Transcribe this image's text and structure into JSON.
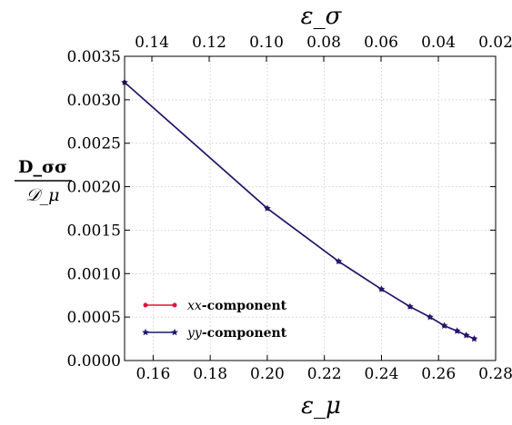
{
  "chart_data": {
    "type": "line",
    "xlabel": "ε_μ",
    "x2label": "ε_σ",
    "ylabel": {
      "numerator": "D_σσ",
      "denominator": "𝒟_μ"
    },
    "xlim": [
      0.15,
      0.28
    ],
    "ylim": [
      0.0,
      0.0035
    ],
    "x_ticks": [
      "0.16",
      "0.18",
      "0.20",
      "0.22",
      "0.24",
      "0.26",
      "0.28"
    ],
    "y_ticks": [
      "0.0000",
      "0.0005",
      "0.0010",
      "0.0015",
      "0.0020",
      "0.0025",
      "0.0030",
      "0.0035"
    ],
    "x2_ticks": [
      "0.14",
      "0.12",
      "0.10",
      "0.08",
      "0.06",
      "0.04",
      "0.02"
    ],
    "grid": true,
    "legend_position": "lower-left",
    "series": [
      {
        "name_math": "xx",
        "name_text": "-component",
        "color": "#dc143c",
        "marker": "circle",
        "x": [
          0.15,
          0.2,
          0.225,
          0.24,
          0.25,
          0.257,
          0.262,
          0.2665,
          0.2697,
          0.2725
        ],
        "y": [
          0.0032,
          0.00175,
          0.00114,
          0.00082,
          0.00062,
          0.0005,
          0.0004,
          0.00034,
          0.00029,
          0.00025
        ]
      },
      {
        "name_math": "yy",
        "name_text": "-component",
        "color": "#191970",
        "marker": "star",
        "x": [
          0.15,
          0.2,
          0.225,
          0.24,
          0.25,
          0.257,
          0.262,
          0.2665,
          0.2697,
          0.2725
        ],
        "y": [
          0.0032,
          0.00175,
          0.00114,
          0.00082,
          0.00062,
          0.0005,
          0.0004,
          0.00034,
          0.00029,
          0.00025
        ]
      }
    ]
  }
}
